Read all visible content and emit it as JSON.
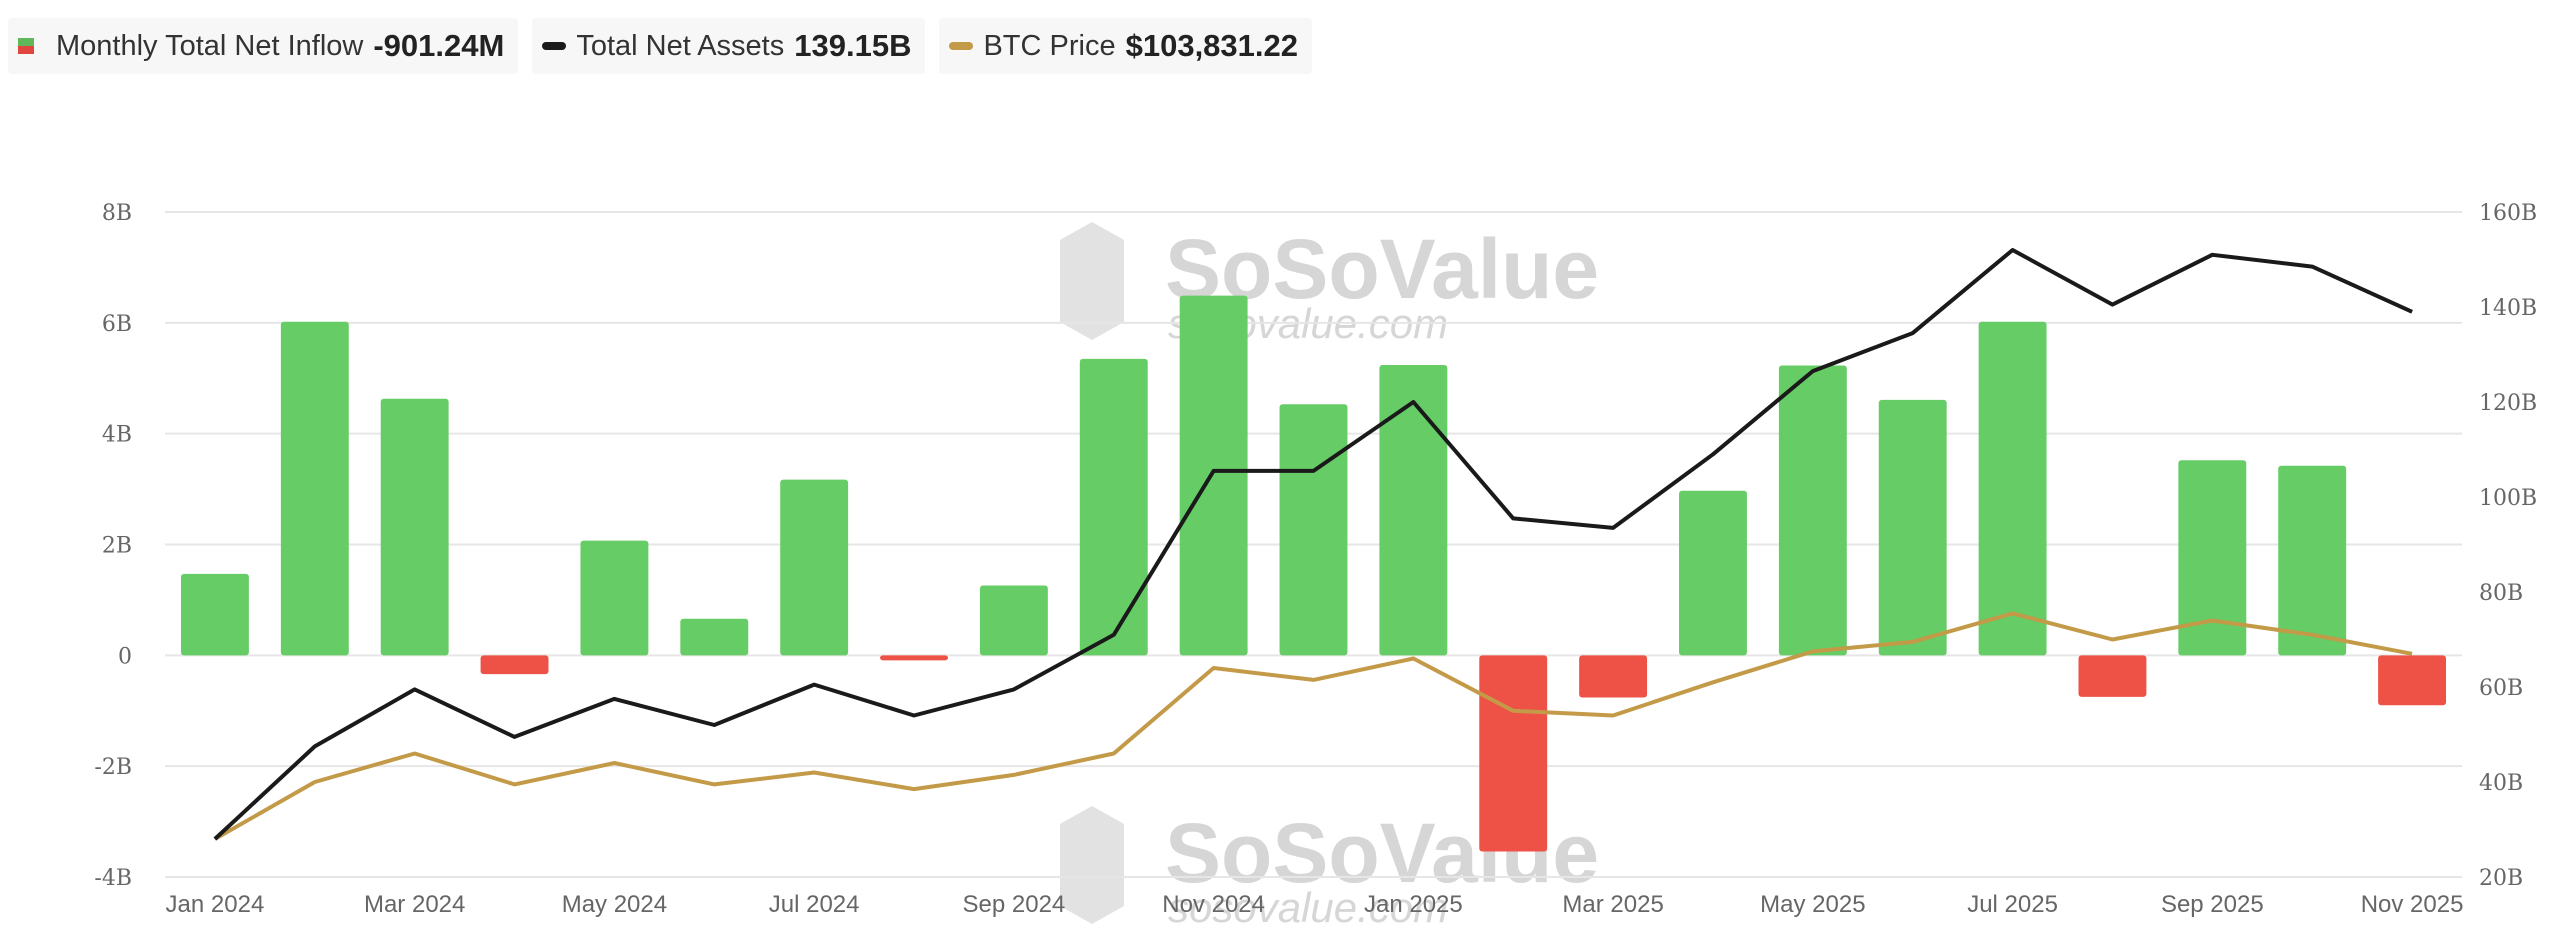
{
  "legend": {
    "inflow": {
      "label": "Monthly Total Net Inflow",
      "value": "-901.24M"
    },
    "assets": {
      "label": "Total Net Assets",
      "value": "139.15B"
    },
    "btc": {
      "label": "BTC Price",
      "value": "$103,831.22"
    }
  },
  "watermark": {
    "brand": "SoSoValue",
    "url": "sosovalue.com"
  },
  "colors": {
    "positive": "#66cc66",
    "negative": "#ee5247",
    "assets": "#1a1a1a",
    "btc": "#c39a47",
    "grid": "#e6e6e6"
  },
  "chart_data": {
    "type": "bar",
    "months": [
      "Jan 2024",
      "Feb 2024",
      "Mar 2024",
      "Apr 2024",
      "May 2024",
      "Jun 2024",
      "Jul 2024",
      "Aug 2024",
      "Sep 2024",
      "Oct 2024",
      "Nov 2024",
      "Dec 2024",
      "Jan 2025",
      "Feb 2025",
      "Mar 2025",
      "Apr 2025",
      "May 2025",
      "Jun 2025",
      "Jul 2025",
      "Aug 2025",
      "Sep 2025",
      "Oct 2025",
      "Nov 2025"
    ],
    "x_tick_labels": [
      "Jan 2024",
      "Mar 2024",
      "May 2024",
      "Jul 2024",
      "Sep 2024",
      "Nov 2024",
      "Jan 2025",
      "Mar 2025",
      "May 2025",
      "Jul 2025",
      "Sep 2025",
      "Nov 2025"
    ],
    "left_axis": {
      "ylim": [
        -4,
        8
      ],
      "unit": "B",
      "tick_labels": [
        "-4B",
        "-2B",
        "0",
        "2B",
        "4B",
        "6B",
        "8B"
      ],
      "tick_values": [
        -4,
        -2,
        0,
        2,
        4,
        6,
        8
      ]
    },
    "right_axis": {
      "ylim": [
        20,
        160
      ],
      "unit": "B",
      "tick_labels": [
        "20B",
        "40B",
        "60B",
        "80B",
        "100B",
        "120B",
        "140B",
        "160B"
      ],
      "tick_values": [
        20,
        40,
        60,
        80,
        100,
        120,
        140,
        160
      ]
    },
    "series": [
      {
        "name": "Monthly Total Net Inflow",
        "type": "bar",
        "axis": "left",
        "values": [
          1.47,
          6.02,
          4.63,
          -0.34,
          2.07,
          0.66,
          3.17,
          -0.09,
          1.26,
          5.35,
          6.49,
          4.53,
          5.24,
          -3.54,
          -0.76,
          2.97,
          5.23,
          4.61,
          6.02,
          -0.75,
          3.52,
          3.42,
          -0.9
        ]
      },
      {
        "name": "Total Net Assets",
        "type": "line",
        "axis": "right",
        "values": [
          28,
          47.5,
          59.5,
          49.5,
          57.5,
          52,
          60.5,
          54,
          59.5,
          71,
          105.5,
          105.5,
          120,
          95.5,
          93.5,
          109,
          126.5,
          134.5,
          152,
          140.5,
          151,
          148.5,
          139
        ]
      },
      {
        "name": "BTC Price",
        "type": "line",
        "axis": "right",
        "values": [
          28,
          40,
          46,
          39.5,
          44,
          39.5,
          42,
          38.5,
          41.5,
          46,
          64,
          61.5,
          66,
          55,
          54,
          61,
          67.5,
          69.5,
          75.5,
          70,
          74,
          71,
          67
        ]
      }
    ]
  }
}
